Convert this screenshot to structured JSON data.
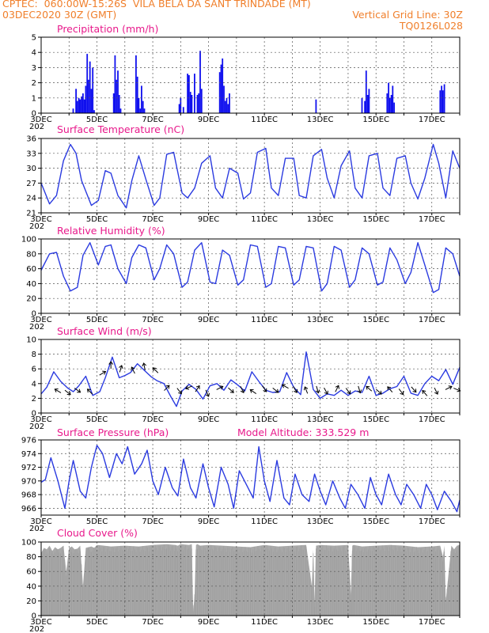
{
  "header": {
    "line1_left": "CPTEC:  060:00W-15:26S  VILA BELA DA SANT TRINDADE (MT)",
    "line2_left": "03DEC2020 30Z (GMT)",
    "line2_right": "Vertical Grid Line: 30Z",
    "line3_right": "TQ0126L028"
  },
  "colors": {
    "line": "#2b3be0",
    "bar": "#1010ee",
    "cloud": "#a9a9a9",
    "title": "#e8198b",
    "header": "#f07f2b",
    "grid": "#555555"
  },
  "x_axis": {
    "start_day": 3,
    "end_day": 18,
    "labels": [
      {
        "day": 3,
        "label": "3DEC"
      },
      {
        "day": 5,
        "label": "5DEC"
      },
      {
        "day": 7,
        "label": "7DEC"
      },
      {
        "day": 9,
        "label": "9DEC"
      },
      {
        "day": 11,
        "label": "11DEC"
      },
      {
        "day": 13,
        "label": "13DEC"
      },
      {
        "day": 15,
        "label": "15DEC"
      },
      {
        "day": 17,
        "label": "17DEC"
      }
    ],
    "year_label": "202"
  },
  "chart_data": [
    {
      "id": "precip",
      "type": "bar",
      "title": "Precipitation (mm/h)",
      "ylim": [
        0,
        5
      ],
      "yticks": [
        0,
        1,
        2,
        3,
        4,
        5
      ],
      "grid": true,
      "x": [
        4.15,
        4.25,
        4.3,
        4.35,
        4.4,
        4.45,
        4.5,
        4.55,
        4.6,
        4.65,
        4.7,
        4.75,
        4.8,
        4.85,
        4.9,
        5.6,
        5.65,
        5.7,
        5.75,
        5.8,
        5.85,
        6.4,
        6.45,
        6.5,
        6.55,
        6.6,
        6.65,
        6.7,
        7.95,
        8.0,
        8.1,
        8.25,
        8.3,
        8.35,
        8.4,
        8.5,
        8.6,
        8.65,
        8.7,
        8.75,
        9.4,
        9.45,
        9.5,
        9.55,
        9.6,
        9.65,
        9.7,
        9.75,
        12.85,
        14.5,
        14.6,
        14.65,
        14.7,
        14.75,
        15.4,
        15.45,
        15.5,
        15.55,
        15.6,
        15.65,
        17.3,
        17.35,
        17.4,
        17.45
      ],
      "values": [
        0.3,
        1.6,
        0.8,
        1.0,
        0.9,
        1.1,
        1.3,
        0.9,
        1.8,
        3.9,
        2.2,
        3.4,
        1.6,
        3.0,
        0.2,
        1.3,
        3.8,
        2.2,
        2.8,
        1.2,
        0.3,
        3.8,
        2.4,
        1.0,
        0.3,
        1.8,
        0.8,
        0.3,
        0.6,
        1.0,
        0.4,
        2.6,
        2.5,
        1.4,
        1.2,
        2.6,
        1.2,
        1.3,
        4.1,
        1.6,
        2.7,
        3.2,
        3.6,
        1.8,
        0.8,
        1.0,
        0.6,
        1.3,
        0.9,
        1.0,
        0.8,
        2.8,
        1.2,
        1.6,
        1.3,
        2.0,
        1.0,
        1.2,
        1.8,
        0.7,
        1.5,
        1.8,
        1.5,
        1.9
      ]
    },
    {
      "id": "temp",
      "type": "line",
      "title": "Surface Temperature (nC)",
      "ylim": [
        21,
        36
      ],
      "yticks": [
        21,
        24,
        27,
        30,
        33,
        36
      ],
      "grid": true,
      "x": [
        3.0,
        3.3,
        3.55,
        3.8,
        4.05,
        4.25,
        4.45,
        4.8,
        5.05,
        5.3,
        5.5,
        5.75,
        6.05,
        6.25,
        6.5,
        6.75,
        7.05,
        7.25,
        7.5,
        7.75,
        8.05,
        8.25,
        8.5,
        8.75,
        9.05,
        9.25,
        9.5,
        9.75,
        10.05,
        10.25,
        10.5,
        10.75,
        11.05,
        11.25,
        11.5,
        11.75,
        12.05,
        12.25,
        12.5,
        12.75,
        13.05,
        13.25,
        13.5,
        13.75,
        14.05,
        14.25,
        14.5,
        14.75,
        15.05,
        15.25,
        15.5,
        15.75,
        16.05,
        16.25,
        16.5,
        16.75,
        17.05,
        17.25,
        17.5,
        17.75,
        18.0
      ],
      "values": [
        27.0,
        22.8,
        24.5,
        31.5,
        34.8,
        33.0,
        27.5,
        22.5,
        23.5,
        29.5,
        29.0,
        24.5,
        22.0,
        27.5,
        32.5,
        27.8,
        22.5,
        24.0,
        32.8,
        33.2,
        25.0,
        24.0,
        26.0,
        31.0,
        32.5,
        26.0,
        24.0,
        30.0,
        29.0,
        23.8,
        25.0,
        33.2,
        34.0,
        26.0,
        24.5,
        32.0,
        32.0,
        24.5,
        24.0,
        32.5,
        33.8,
        28.0,
        24.0,
        30.5,
        33.5,
        26.0,
        24.0,
        32.5,
        33.0,
        26.0,
        24.5,
        32.0,
        32.5,
        27.0,
        23.8,
        28.0,
        34.8,
        31.0,
        24.0,
        33.5,
        30.0
      ]
    },
    {
      "id": "rh",
      "type": "line",
      "title": "Relative Humidity (%)",
      "ylim": [
        0,
        100
      ],
      "yticks": [
        0,
        20,
        40,
        60,
        80,
        100
      ],
      "grid": true,
      "x": [
        3.0,
        3.3,
        3.55,
        3.8,
        4.05,
        4.3,
        4.5,
        4.75,
        5.05,
        5.3,
        5.5,
        5.75,
        6.05,
        6.25,
        6.5,
        6.75,
        7.05,
        7.25,
        7.5,
        7.75,
        8.05,
        8.25,
        8.5,
        8.75,
        9.05,
        9.25,
        9.5,
        9.75,
        10.05,
        10.25,
        10.5,
        10.75,
        11.05,
        11.25,
        11.5,
        11.75,
        12.05,
        12.25,
        12.5,
        12.75,
        13.05,
        13.25,
        13.5,
        13.75,
        14.05,
        14.25,
        14.5,
        14.75,
        15.05,
        15.25,
        15.5,
        15.75,
        16.05,
        16.25,
        16.5,
        16.75,
        17.05,
        17.25,
        17.5,
        17.75,
        18.0
      ],
      "values": [
        58,
        80,
        82,
        50,
        30,
        35,
        78,
        95,
        65,
        90,
        92,
        60,
        40,
        75,
        92,
        88,
        45,
        60,
        92,
        80,
        35,
        42,
        85,
        95,
        42,
        40,
        85,
        78,
        38,
        45,
        92,
        90,
        35,
        40,
        90,
        88,
        38,
        45,
        90,
        88,
        30,
        40,
        90,
        85,
        35,
        45,
        88,
        80,
        38,
        42,
        88,
        72,
        40,
        55,
        95,
        65,
        28,
        32,
        88,
        80,
        50
      ]
    },
    {
      "id": "wind",
      "type": "line",
      "title": "Surface Wind (m/s)",
      "ylim": [
        0,
        10
      ],
      "yticks": [
        0,
        2,
        4,
        6,
        8,
        10
      ],
      "grid": true,
      "x": [
        3.0,
        3.2,
        3.45,
        3.7,
        3.95,
        4.15,
        4.35,
        4.6,
        4.85,
        5.1,
        5.3,
        5.55,
        5.8,
        6.0,
        6.2,
        6.45,
        6.7,
        6.95,
        7.15,
        7.4,
        7.65,
        7.85,
        8.05,
        8.3,
        8.55,
        8.8,
        9.05,
        9.3,
        9.55,
        9.8,
        10.05,
        10.3,
        10.55,
        10.8,
        11.05,
        11.3,
        11.55,
        11.8,
        12.05,
        12.3,
        12.5,
        12.75,
        13.0,
        13.25,
        13.5,
        13.75,
        14.0,
        14.25,
        14.5,
        14.75,
        15.0,
        15.25,
        15.5,
        15.75,
        16.0,
        16.25,
        16.5,
        16.75,
        17.0,
        17.25,
        17.5,
        17.75,
        18.0
      ],
      "values": [
        2.6,
        3.5,
        5.6,
        4.3,
        3.4,
        2.9,
        3.7,
        5.0,
        2.4,
        2.9,
        4.8,
        7.6,
        4.8,
        5.1,
        5.5,
        6.7,
        5.8,
        4.9,
        4.4,
        4.0,
        2.2,
        0.9,
        3.0,
        3.9,
        3.2,
        1.9,
        3.7,
        4.0,
        3.1,
        4.5,
        3.8,
        3.0,
        5.6,
        4.3,
        3.1,
        2.8,
        2.9,
        5.5,
        3.5,
        2.5,
        8.3,
        3.2,
        2.0,
        2.6,
        2.4,
        3.1,
        2.4,
        3.0,
        2.8,
        5.0,
        2.4,
        2.7,
        3.3,
        3.6,
        5.0,
        2.7,
        2.4,
        4.0,
        5.0,
        4.4,
        5.9,
        3.9,
        6.2
      ]
    },
    {
      "id": "pressure",
      "type": "line",
      "title": "Surface Pressure (hPa)",
      "subtitle": "Model Altitude: 333.529  m",
      "ylim": [
        965,
        976
      ],
      "yticks": [
        966,
        968,
        970,
        972,
        974,
        976
      ],
      "grid": true,
      "x": [
        3.0,
        3.15,
        3.35,
        3.6,
        3.85,
        4.0,
        4.15,
        4.4,
        4.6,
        4.8,
        5.0,
        5.2,
        5.45,
        5.7,
        5.9,
        6.1,
        6.35,
        6.6,
        6.8,
        7.0,
        7.2,
        7.45,
        7.7,
        7.9,
        8.1,
        8.35,
        8.55,
        8.8,
        9.0,
        9.2,
        9.45,
        9.7,
        9.9,
        10.1,
        10.35,
        10.6,
        10.8,
        11.0,
        11.2,
        11.45,
        11.7,
        11.9,
        12.1,
        12.35,
        12.6,
        12.8,
        13.0,
        13.2,
        13.45,
        13.7,
        13.9,
        14.1,
        14.35,
        14.6,
        14.8,
        15.0,
        15.2,
        15.45,
        15.7,
        15.9,
        16.1,
        16.35,
        16.6,
        16.8,
        17.0,
        17.2,
        17.45,
        17.7,
        17.9,
        18.0
      ],
      "values": [
        969.8,
        970.2,
        973.4,
        970.0,
        966.0,
        970.0,
        973.0,
        968.5,
        967.5,
        972.0,
        975.2,
        974.0,
        970.5,
        974.0,
        972.5,
        975.0,
        971.0,
        972.5,
        974.5,
        970.0,
        968.0,
        972.0,
        969.0,
        967.8,
        973.2,
        969.0,
        967.5,
        972.5,
        969.0,
        966.2,
        972.0,
        969.5,
        966.0,
        971.5,
        969.5,
        967.5,
        975.0,
        970.0,
        967.0,
        973.0,
        967.5,
        966.5,
        971.0,
        968.0,
        967.0,
        971.0,
        968.5,
        966.5,
        970.0,
        967.5,
        966.0,
        969.5,
        968.0,
        966.0,
        970.5,
        968.0,
        966.5,
        971.0,
        968.0,
        966.5,
        969.5,
        968.0,
        966.0,
        969.5,
        968.0,
        965.8,
        968.5,
        967.0,
        965.5,
        967.2
      ]
    },
    {
      "id": "cloud",
      "type": "area",
      "title": "Cloud Cover (%)",
      "ylim": [
        0,
        100
      ],
      "yticks": [
        0,
        20,
        40,
        60,
        80,
        100
      ],
      "grid": true,
      "x": [
        3.0,
        3.1,
        3.2,
        3.3,
        3.4,
        3.5,
        3.6,
        3.7,
        3.8,
        3.9,
        4.0,
        4.1,
        4.2,
        4.3,
        4.4,
        4.5,
        4.6,
        4.7,
        4.8,
        4.9,
        5.0,
        5.5,
        6.0,
        6.5,
        7.0,
        7.5,
        7.8,
        7.9,
        8.0,
        8.3,
        8.4,
        8.45,
        8.5,
        8.55,
        8.6,
        8.7,
        9.0,
        9.5,
        10.0,
        10.5,
        11.0,
        11.5,
        12.0,
        12.5,
        12.7,
        12.75,
        12.8,
        12.85,
        13.0,
        13.5,
        14.0,
        14.1,
        14.15,
        14.2,
        14.5,
        15.0,
        15.5,
        16.0,
        16.5,
        17.0,
        17.3,
        17.4,
        17.45,
        17.5,
        17.7,
        17.8,
        17.9,
        18.0
      ],
      "values": [
        85,
        92,
        90,
        95,
        88,
        93,
        90,
        92,
        95,
        60,
        92,
        94,
        90,
        91,
        95,
        40,
        92,
        93,
        94,
        92,
        96,
        94,
        95,
        94,
        96,
        97,
        96,
        95,
        97,
        96,
        97,
        5,
        30,
        96,
        97,
        95,
        96,
        95,
        94,
        93,
        96,
        94,
        95,
        96,
        40,
        90,
        20,
        95,
        96,
        95,
        96,
        30,
        95,
        96,
        94,
        95,
        96,
        95,
        93,
        94,
        95,
        80,
        95,
        20,
        95,
        90,
        95,
        96
      ]
    }
  ]
}
